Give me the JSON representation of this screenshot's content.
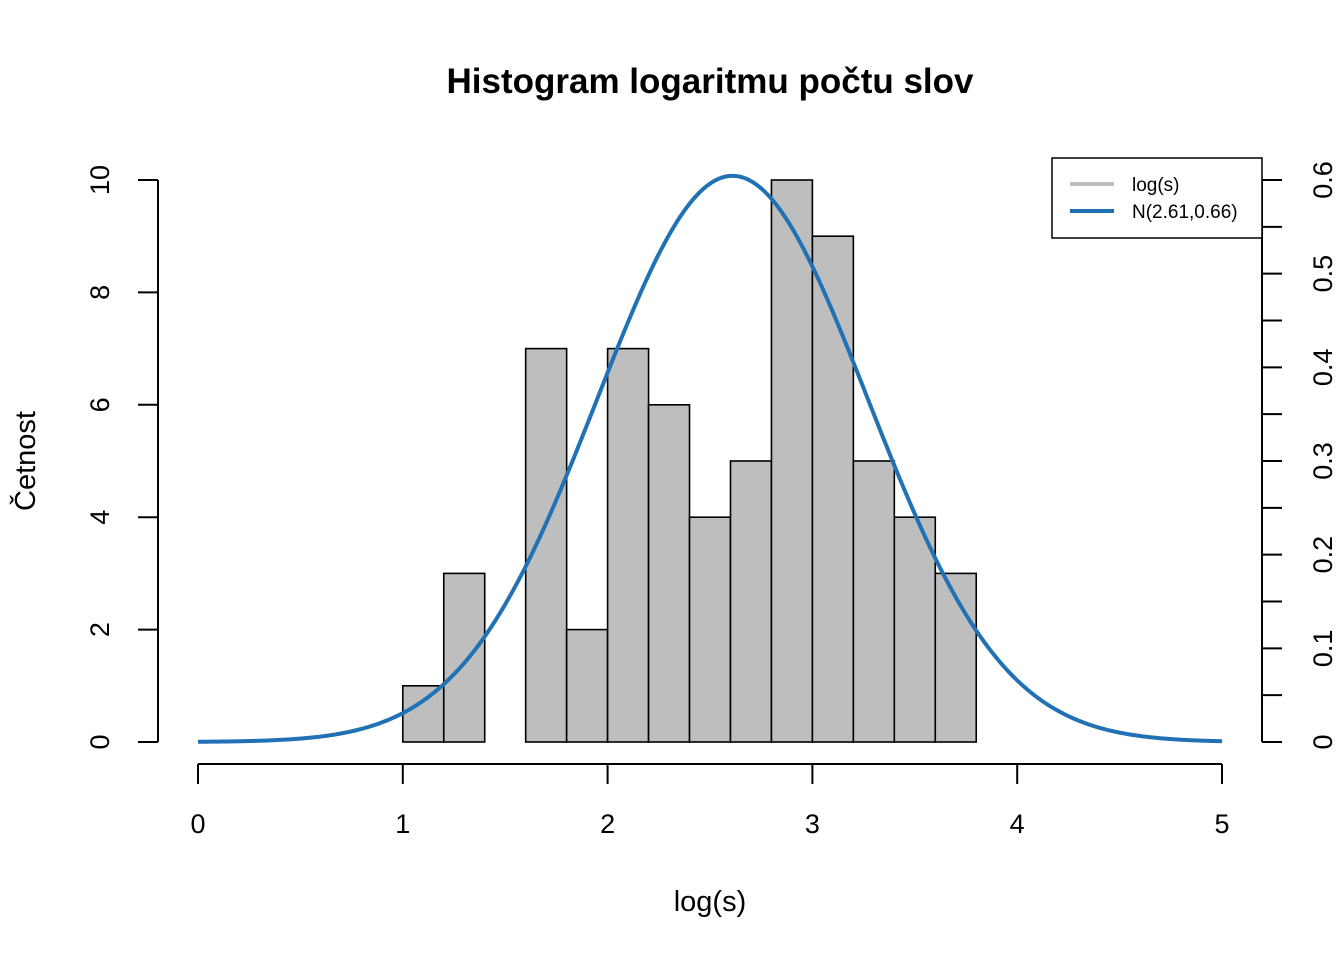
{
  "chart_data": {
    "type": "bar",
    "title": "Histogram logaritmu počtu slov",
    "xlabel": "log(s)",
    "ylabel": "Četnost",
    "xlim": [
      0,
      5
    ],
    "ylim": [
      0,
      10
    ],
    "y2lim": [
      0,
      0.6
    ],
    "x_ticks": [
      "0",
      "1",
      "2",
      "3",
      "4",
      "5"
    ],
    "y_ticks": [
      "0",
      "2",
      "4",
      "6",
      "8",
      "10"
    ],
    "y2_ticks": [
      "0",
      "0.1",
      "0.2",
      "0.3",
      "0.4",
      "0.5",
      "0.6"
    ],
    "y2_minor_step": 0.05,
    "bins": [
      {
        "from": 1.0,
        "to": 1.2,
        "count": 1
      },
      {
        "from": 1.2,
        "to": 1.4,
        "count": 3
      },
      {
        "from": 1.4,
        "to": 1.6,
        "count": 0
      },
      {
        "from": 1.6,
        "to": 1.8,
        "count": 7
      },
      {
        "from": 1.8,
        "to": 2.0,
        "count": 2
      },
      {
        "from": 2.0,
        "to": 2.2,
        "count": 7
      },
      {
        "from": 2.2,
        "to": 2.4,
        "count": 6
      },
      {
        "from": 2.4,
        "to": 2.6,
        "count": 4
      },
      {
        "from": 2.6,
        "to": 2.8,
        "count": 5
      },
      {
        "from": 2.8,
        "to": 3.0,
        "count": 10
      },
      {
        "from": 3.0,
        "to": 3.2,
        "count": 9
      },
      {
        "from": 3.2,
        "to": 3.4,
        "count": 5
      },
      {
        "from": 3.4,
        "to": 3.6,
        "count": 4
      },
      {
        "from": 3.6,
        "to": 3.8,
        "count": 3
      }
    ],
    "series": [
      {
        "name": "log(s)",
        "kind": "histogram",
        "color": "#bebebe"
      },
      {
        "name": "N(2.61,0.66)",
        "kind": "normal-density",
        "mean": 2.61,
        "sd": 0.66,
        "color": "#2171b5"
      }
    ],
    "legend_position": "top-right",
    "grid": false
  }
}
